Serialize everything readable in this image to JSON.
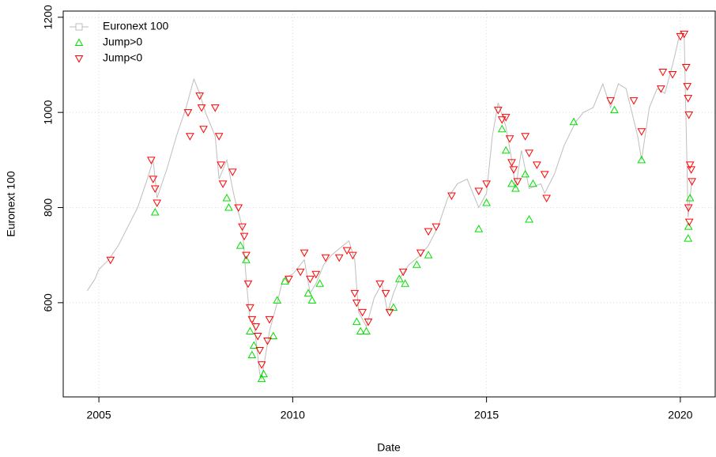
{
  "chart_data": {
    "type": "line",
    "xlabel": "Date",
    "ylabel": "Euronext 100",
    "xlim": [
      2004.08,
      2020.92
    ],
    "ylim": [
      402,
      1213
    ],
    "xticks": [
      2005,
      2010,
      2015,
      2020
    ],
    "yticks": [
      600,
      800,
      1000,
      1200
    ],
    "grid": true,
    "legend": "topleft",
    "series": [
      {
        "name": "Euronext 100",
        "color": "#bebebe",
        "marker": "line",
        "x": [
          2004.7,
          2004.9,
          2005.0,
          2005.25,
          2005.5,
          2005.75,
          2006.0,
          2006.25,
          2006.4,
          2006.5,
          2006.75,
          2007.0,
          2007.25,
          2007.45,
          2007.6,
          2007.75,
          2008.0,
          2008.1,
          2008.3,
          2008.5,
          2008.7,
          2008.8,
          2008.9,
          2009.0,
          2009.15,
          2009.2,
          2009.4,
          2009.6,
          2009.75,
          2010.0,
          2010.3,
          2010.45,
          2010.6,
          2010.8,
          2011.0,
          2011.3,
          2011.45,
          2011.6,
          2011.7,
          2011.9,
          2012.1,
          2012.3,
          2012.45,
          2012.6,
          2012.75,
          2013.0,
          2013.3,
          2013.5,
          2013.75,
          2014.0,
          2014.25,
          2014.5,
          2014.8,
          2015.0,
          2015.15,
          2015.3,
          2015.5,
          2015.65,
          2015.75,
          2015.9,
          2016.1,
          2016.4,
          2016.5,
          2016.75,
          2017.0,
          2017.3,
          2017.5,
          2017.75,
          2018.0,
          2018.2,
          2018.4,
          2018.6,
          2018.9,
          2019.0,
          2019.2,
          2019.4,
          2019.6,
          2019.8,
          2020.0,
          2020.1,
          2020.2,
          2020.3
        ],
        "values": [
          625,
          650,
          670,
          690,
          720,
          760,
          800,
          860,
          900,
          820,
          880,
          950,
          1010,
          1070,
          1040,
          1000,
          950,
          860,
          900,
          820,
          760,
          650,
          560,
          560,
          450,
          440,
          540,
          600,
          650,
          660,
          690,
          620,
          640,
          680,
          700,
          720,
          730,
          690,
          580,
          550,
          610,
          640,
          580,
          620,
          650,
          680,
          700,
          720,
          760,
          820,
          850,
          860,
          800,
          830,
          950,
          1020,
          970,
          900,
          840,
          920,
          840,
          850,
          830,
          870,
          930,
          980,
          1000,
          1010,
          1060,
          1010,
          1060,
          1050,
          950,
          900,
          1010,
          1050,
          1040,
          1100,
          1170,
          1160,
          780,
          860
        ]
      },
      {
        "name": "Jump>0",
        "color": "#00e000",
        "marker": "up",
        "x": [
          2006.45,
          2008.3,
          2008.35,
          2008.65,
          2008.8,
          2008.9,
          2008.95,
          2009.0,
          2009.2,
          2009.25,
          2009.5,
          2009.6,
          2009.8,
          2010.4,
          2010.5,
          2010.7,
          2011.65,
          2011.75,
          2011.9,
          2012.6,
          2012.75,
          2012.9,
          2013.2,
          2013.5,
          2014.8,
          2015.0,
          2015.4,
          2015.5,
          2015.65,
          2015.75,
          2016.0,
          2016.1,
          2016.2,
          2017.25,
          2018.3,
          2019.0,
          2020.2,
          2020.21,
          2020.25
        ],
        "values": [
          790,
          820,
          800,
          720,
          690,
          540,
          490,
          510,
          440,
          450,
          530,
          605,
          645,
          620,
          605,
          640,
          560,
          540,
          540,
          590,
          650,
          640,
          680,
          700,
          755,
          810,
          965,
          920,
          850,
          840,
          870,
          775,
          850,
          980,
          1005,
          900,
          735,
          760,
          820
        ]
      },
      {
        "name": "Jump<0",
        "color": "#ff0000",
        "marker": "down",
        "x": [
          2005.3,
          2006.35,
          2006.4,
          2006.45,
          2006.5,
          2007.3,
          2007.35,
          2007.6,
          2007.65,
          2007.7,
          2008.0,
          2008.1,
          2008.15,
          2008.2,
          2008.45,
          2008.6,
          2008.7,
          2008.75,
          2008.8,
          2008.85,
          2008.9,
          2008.95,
          2009.05,
          2009.1,
          2009.15,
          2009.2,
          2009.35,
          2009.4,
          2009.9,
          2010.2,
          2010.3,
          2010.45,
          2010.6,
          2010.85,
          2011.2,
          2011.4,
          2011.55,
          2011.6,
          2011.65,
          2011.8,
          2011.95,
          2012.25,
          2012.4,
          2012.5,
          2012.85,
          2013.3,
          2013.5,
          2013.7,
          2014.1,
          2014.8,
          2015.0,
          2015.3,
          2015.4,
          2015.5,
          2015.6,
          2015.65,
          2015.7,
          2015.8,
          2016.0,
          2016.1,
          2016.3,
          2016.5,
          2016.55,
          2018.2,
          2018.8,
          2019.0,
          2019.5,
          2019.55,
          2019.8,
          2020.0,
          2020.1,
          2020.15,
          2020.18,
          2020.2,
          2020.22,
          2020.25,
          2020.28,
          2020.3,
          2020.21,
          2020.23
        ],
        "values": [
          690,
          900,
          860,
          840,
          810,
          1000,
          950,
          1035,
          1010,
          965,
          1010,
          950,
          890,
          850,
          875,
          800,
          760,
          740,
          700,
          640,
          590,
          565,
          550,
          530,
          500,
          470,
          520,
          565,
          650,
          665,
          705,
          650,
          660,
          695,
          695,
          710,
          700,
          620,
          600,
          580,
          560,
          640,
          620,
          580,
          665,
          705,
          750,
          760,
          825,
          835,
          850,
          1005,
          985,
          990,
          945,
          895,
          880,
          855,
          950,
          915,
          890,
          870,
          820,
          1025,
          1025,
          960,
          1050,
          1085,
          1080,
          1160,
          1165,
          1095,
          1055,
          1030,
          995,
          890,
          880,
          855,
          800,
          770
        ]
      }
    ]
  }
}
